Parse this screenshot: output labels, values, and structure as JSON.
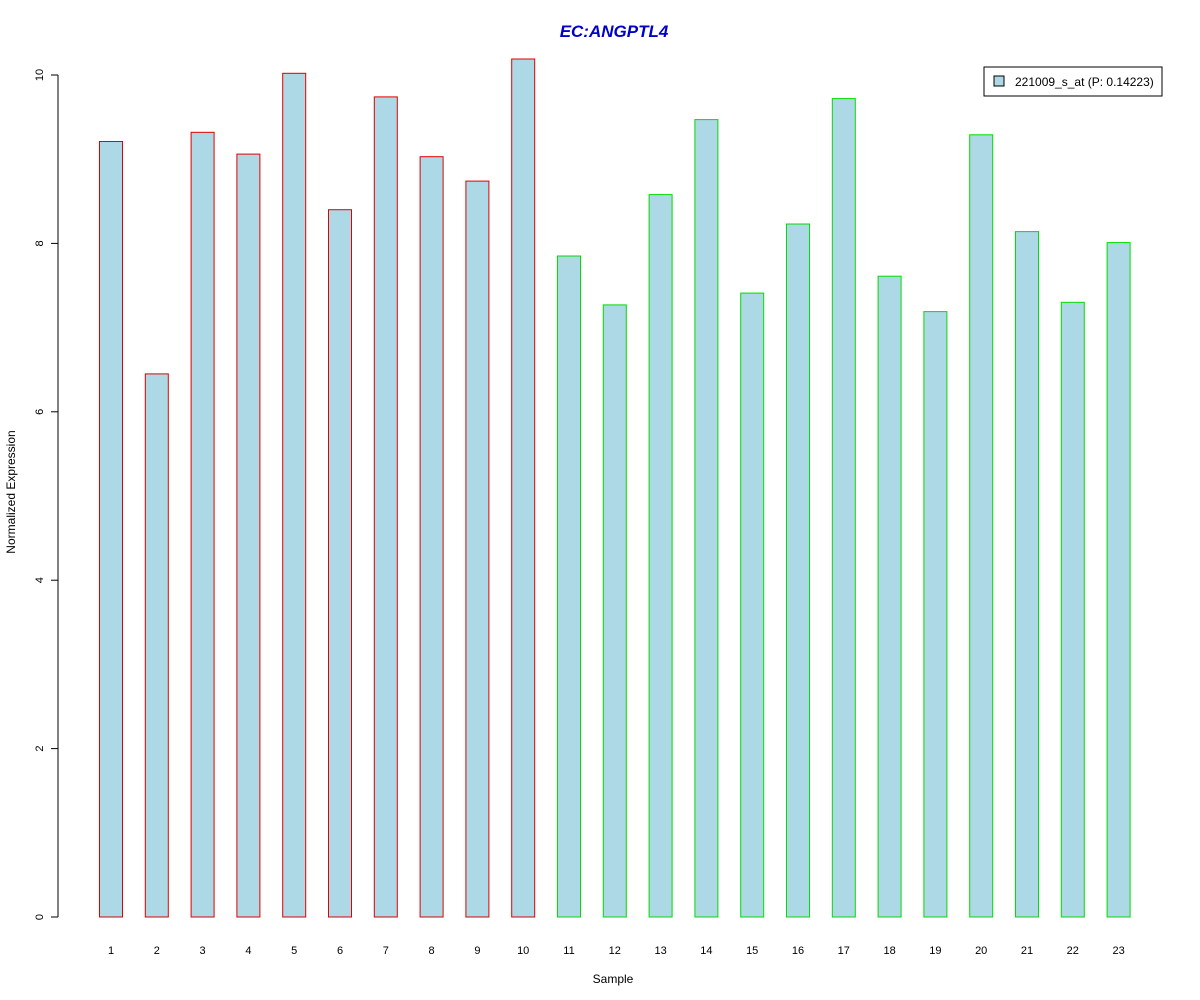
{
  "chart_data": {
    "type": "bar",
    "title": "EC:ANGPTL4",
    "title_color": "#0000CC",
    "xlabel": "Sample",
    "ylabel": "Normalized Expression",
    "ylim": [
      0,
      10
    ],
    "yticks": [
      0,
      2,
      4,
      6,
      8,
      10
    ],
    "grid": false,
    "legend_position": "top-right",
    "legend_label": "221009_s_at (P: 0.14223)",
    "bar_fill": "#ADD8E6",
    "categories": [
      "1",
      "2",
      "3",
      "4",
      "5",
      "6",
      "7",
      "8",
      "9",
      "10",
      "11",
      "12",
      "13",
      "14",
      "15",
      "16",
      "17",
      "18",
      "19",
      "20",
      "21",
      "22",
      "23"
    ],
    "values": [
      9.21,
      6.45,
      9.32,
      9.06,
      10.02,
      8.4,
      9.74,
      9.03,
      8.74,
      10.19,
      7.85,
      7.27,
      8.58,
      9.47,
      7.41,
      8.23,
      9.72,
      7.61,
      7.19,
      9.29,
      8.14,
      7.3,
      8.01
    ],
    "groups": [
      {
        "members": [
          "1",
          "2",
          "3",
          "4",
          "5",
          "6",
          "7",
          "8",
          "9",
          "10"
        ],
        "border_color": "#E00000"
      },
      {
        "members": [
          "11",
          "12",
          "13",
          "14",
          "15",
          "16",
          "17",
          "18",
          "19",
          "20",
          "21",
          "22",
          "23"
        ],
        "border_color": "#00DD00"
      }
    ]
  }
}
